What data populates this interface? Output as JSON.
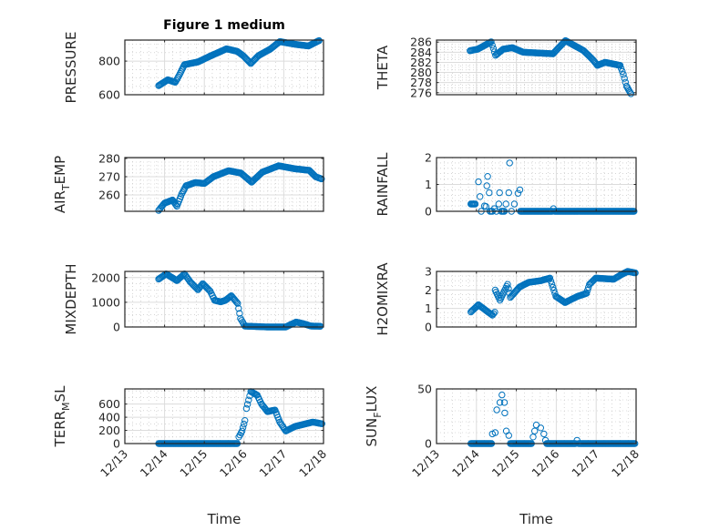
{
  "chart_data": [
    {
      "type": "scatter",
      "title": "Figure 1 medium",
      "ylabel_parts": [
        "PRESSURE"
      ],
      "xlabel": "",
      "ylim": [
        600,
        925
      ],
      "yticks": [
        600,
        800
      ],
      "yminor": 50,
      "interp": "linear",
      "points": [
        [
          0.85,
          654
        ],
        [
          1.08,
          689
        ],
        [
          1.27,
          674
        ],
        [
          1.39,
          726
        ],
        [
          1.5,
          779
        ],
        [
          1.84,
          795
        ],
        [
          2.15,
          830
        ],
        [
          2.56,
          873
        ],
        [
          2.83,
          858
        ],
        [
          2.98,
          832
        ],
        [
          3.17,
          786
        ],
        [
          3.36,
          832
        ],
        [
          3.67,
          873
        ],
        [
          3.9,
          916
        ],
        [
          4.28,
          900
        ],
        [
          4.62,
          890
        ],
        [
          4.89,
          922
        ]
      ]
    },
    {
      "type": "scatter",
      "title": "",
      "ylabel_parts": [
        "THETA"
      ],
      "xlabel": "",
      "ylim": [
        275.6,
        286.4
      ],
      "yticks": [
        276,
        278,
        280,
        282,
        284,
        286
      ],
      "yminor": 0.5,
      "interp": "linear",
      "points": [
        [
          0.84,
          284.3
        ],
        [
          1.03,
          284.6
        ],
        [
          1.37,
          286.05
        ],
        [
          1.48,
          283.4
        ],
        [
          1.67,
          284.6
        ],
        [
          1.9,
          284.9
        ],
        [
          2.17,
          284.0
        ],
        [
          2.92,
          283.7
        ],
        [
          3.23,
          286.3
        ],
        [
          3.69,
          284.3
        ],
        [
          3.92,
          282.5
        ],
        [
          4.03,
          281.4
        ],
        [
          4.22,
          282.0
        ],
        [
          4.6,
          281.4
        ],
        [
          4.68,
          279.6
        ],
        [
          4.76,
          277.3
        ],
        [
          4.87,
          275.8
        ]
      ]
    },
    {
      "type": "scatter",
      "title": "",
      "ylabel_parts": [
        "AIR",
        "T",
        "EMP"
      ],
      "xlabel": "",
      "ylim": [
        251,
        280.5
      ],
      "yticks": [
        260,
        270,
        280
      ],
      "yminor": 2,
      "interp": "linear",
      "points": [
        [
          0.85,
          251.5
        ],
        [
          1.0,
          255.5
        ],
        [
          1.2,
          257.2
        ],
        [
          1.31,
          253.8
        ],
        [
          1.43,
          260.5
        ],
        [
          1.54,
          265.0
        ],
        [
          1.77,
          266.8
        ],
        [
          2.0,
          266.3
        ],
        [
          2.23,
          270.0
        ],
        [
          2.61,
          273.3
        ],
        [
          2.92,
          272.0
        ],
        [
          3.19,
          267.0
        ],
        [
          3.46,
          272.5
        ],
        [
          3.87,
          276.0
        ],
        [
          4.29,
          274.3
        ],
        [
          4.64,
          273.5
        ],
        [
          4.8,
          270.0
        ],
        [
          4.95,
          268.8
        ]
      ]
    },
    {
      "type": "scatter",
      "title": "",
      "ylabel_parts": [
        "RAINFALL"
      ],
      "xlabel": "",
      "ylim": [
        0,
        2
      ],
      "yticks": [
        0,
        1,
        2
      ],
      "yminor": 0.2,
      "interp": "flat-only",
      "points": [
        [
          0.86,
          0.27
        ],
        [
          0.97,
          0.27
        ],
        [
          1.05,
          1.1
        ],
        [
          1.09,
          0.55
        ],
        [
          1.12,
          0
        ],
        [
          1.2,
          0.2
        ],
        [
          1.24,
          0.18
        ],
        [
          1.26,
          0.95
        ],
        [
          1.28,
          1.3
        ],
        [
          1.32,
          0.69
        ],
        [
          1.34,
          0
        ],
        [
          1.4,
          0
        ],
        [
          1.45,
          0.1
        ],
        [
          1.5,
          0
        ],
        [
          1.56,
          0.27
        ],
        [
          1.58,
          0.69
        ],
        [
          1.62,
          0
        ],
        [
          1.7,
          0
        ],
        [
          1.74,
          0.27
        ],
        [
          1.81,
          0.69
        ],
        [
          1.83,
          1.8
        ],
        [
          1.88,
          0
        ],
        [
          1.95,
          0.27
        ],
        [
          2.04,
          0.67
        ],
        [
          2.09,
          0.8
        ],
        [
          2.1,
          0
        ],
        [
          2.9,
          0
        ],
        [
          2.93,
          0.1
        ],
        [
          2.96,
          0
        ],
        [
          4.95,
          0
        ]
      ]
    },
    {
      "type": "scatter",
      "title": "",
      "ylabel_parts": [
        "MIXDEPTH"
      ],
      "xlabel": "",
      "ylim": [
        0,
        2250
      ],
      "yticks": [
        0,
        1000,
        2000
      ],
      "yminor": 250,
      "interp": "linear",
      "points": [
        [
          0.85,
          1939
        ],
        [
          1.04,
          2150
        ],
        [
          1.31,
          1877
        ],
        [
          1.5,
          2150
        ],
        [
          1.65,
          1816
        ],
        [
          1.84,
          1509
        ],
        [
          1.96,
          1755
        ],
        [
          2.15,
          1448
        ],
        [
          2.26,
          1080
        ],
        [
          2.41,
          1018
        ],
        [
          2.53,
          1080
        ],
        [
          2.68,
          1264
        ],
        [
          2.84,
          957
        ],
        [
          2.91,
          344
        ],
        [
          3.02,
          37
        ],
        [
          3.59,
          0
        ],
        [
          4.05,
          0
        ],
        [
          4.31,
          200
        ],
        [
          4.5,
          130
        ],
        [
          4.69,
          37
        ],
        [
          4.92,
          30
        ]
      ]
    },
    {
      "type": "scatter",
      "title": "",
      "ylabel_parts": [
        "H2OMIXRA"
      ],
      "xlabel": "",
      "ylim": [
        0,
        3
      ],
      "yticks": [
        0,
        1,
        2,
        3
      ],
      "yminor": 0.25,
      "interp": "linear",
      "points": [
        [
          0.86,
          0.81
        ],
        [
          1.05,
          1.2
        ],
        [
          1.24,
          0.89
        ],
        [
          1.4,
          0.64
        ],
        [
          1.46,
          0.8
        ],
        [
          1.47,
          1.99
        ],
        [
          1.59,
          1.45
        ],
        [
          1.78,
          2.3
        ],
        [
          1.85,
          1.6
        ],
        [
          2.08,
          2.16
        ],
        [
          2.31,
          2.41
        ],
        [
          2.61,
          2.5
        ],
        [
          2.84,
          2.64
        ],
        [
          2.99,
          1.65
        ],
        [
          3.22,
          1.32
        ],
        [
          3.53,
          1.65
        ],
        [
          3.76,
          1.82
        ],
        [
          3.83,
          2.3
        ],
        [
          3.99,
          2.64
        ],
        [
          4.44,
          2.58
        ],
        [
          4.63,
          2.83
        ],
        [
          4.79,
          3.0
        ],
        [
          4.98,
          2.92
        ]
      ]
    },
    {
      "type": "scatter",
      "title": "",
      "ylabel_parts": [
        "TERR",
        "M",
        "SL"
      ],
      "xlabel": "Time",
      "ylim": [
        0,
        830
      ],
      "yticks": [
        0,
        200,
        400,
        600
      ],
      "yminor": 100,
      "interp": "linear",
      "points": [
        [
          0.85,
          0
        ],
        [
          2.83,
          0
        ],
        [
          2.87,
          100
        ],
        [
          2.95,
          190
        ],
        [
          3.02,
          350
        ],
        [
          3.06,
          532
        ],
        [
          3.17,
          790
        ],
        [
          3.33,
          736
        ],
        [
          3.44,
          600
        ],
        [
          3.59,
          486
        ],
        [
          3.78,
          509
        ],
        [
          3.9,
          327
        ],
        [
          4.05,
          190
        ],
        [
          4.28,
          259
        ],
        [
          4.58,
          304
        ],
        [
          4.73,
          327
        ],
        [
          4.96,
          300
        ]
      ]
    },
    {
      "type": "scatter",
      "title": "",
      "ylabel_parts": [
        "SUN",
        "F",
        "LUX"
      ],
      "xlabel": "Time",
      "ylim": [
        0,
        50
      ],
      "yticks": [
        0,
        50
      ],
      "yminor": 10,
      "interp": "flat-only",
      "points": [
        [
          0.86,
          0
        ],
        [
          1.38,
          0
        ],
        [
          1.4,
          8.8
        ],
        [
          1.47,
          10
        ],
        [
          1.51,
          30.8
        ],
        [
          1.59,
          37.6
        ],
        [
          1.64,
          44.5
        ],
        [
          1.7,
          37.6
        ],
        [
          1.71,
          28
        ],
        [
          1.75,
          11.5
        ],
        [
          1.81,
          7.4
        ],
        [
          1.85,
          0
        ],
        [
          2.38,
          0
        ],
        [
          2.42,
          6
        ],
        [
          2.46,
          11.5
        ],
        [
          2.5,
          17
        ],
        [
          2.61,
          14.3
        ],
        [
          2.69,
          8.8
        ],
        [
          2.73,
          3
        ],
        [
          2.76,
          0
        ],
        [
          3.48,
          0
        ],
        [
          3.52,
          3
        ],
        [
          3.56,
          0
        ],
        [
          4.97,
          0
        ]
      ]
    }
  ],
  "x_axis": {
    "range_days": [
      0,
      5
    ],
    "ticks": [
      "12/13",
      "12/14",
      "12/15",
      "12/16",
      "12/17",
      "12/18"
    ],
    "minor_per_day": 5
  },
  "marker_color": "#0072BD"
}
